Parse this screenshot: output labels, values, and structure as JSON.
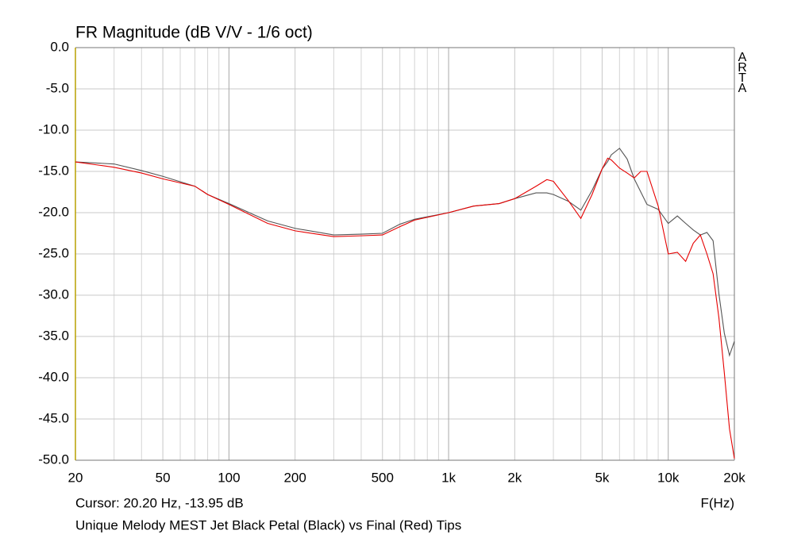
{
  "chart_data": {
    "type": "line",
    "title": "FR Magnitude (dB V/V - 1/6 oct)",
    "watermark": "ARTA",
    "xlabel": "F(Hz)",
    "annotations": [
      "Cursor: 20.20 Hz, -13.95 dB",
      "Unique Melody MEST Jet Black Petal (Black) vs Final (Red) Tips"
    ],
    "xscale": "log",
    "grid": true,
    "xlim": [
      20,
      20000
    ],
    "ylim": [
      -50,
      0
    ],
    "xticks": [
      20,
      50,
      100,
      200,
      500,
      {
        "value": 1000,
        "label": "1k"
      },
      {
        "value": 2000,
        "label": "2k"
      },
      {
        "value": 5000,
        "label": "5k"
      },
      {
        "value": 10000,
        "label": "10k"
      },
      {
        "value": 20000,
        "label": "20k"
      }
    ],
    "xminor_ticks": [
      30,
      40,
      60,
      70,
      80,
      90,
      300,
      400,
      600,
      700,
      800,
      900,
      3000,
      4000,
      6000,
      7000,
      8000,
      9000
    ],
    "yticks": [
      {
        "value": 0,
        "label": "0.0"
      },
      {
        "value": -5,
        "label": "-5.0"
      },
      {
        "value": -10,
        "label": "-10.0"
      },
      {
        "value": -15,
        "label": "-15.0"
      },
      {
        "value": -20,
        "label": "-20.0"
      },
      {
        "value": -25,
        "label": "-25.0"
      },
      {
        "value": -30,
        "label": "-30.0"
      },
      {
        "value": -35,
        "label": "-35.0"
      },
      {
        "value": -40,
        "label": "-40.0"
      },
      {
        "value": -45,
        "label": "-45.0"
      },
      {
        "value": -50,
        "label": "-50.0"
      }
    ],
    "x": [
      20,
      30,
      40,
      50,
      70,
      80,
      100,
      150,
      200,
      300,
      400,
      500,
      600,
      700,
      1000,
      1300,
      1700,
      2000,
      2500,
      2800,
      3000,
      3500,
      4000,
      4500,
      5000,
      5300,
      5500,
      6000,
      6500,
      7000,
      7500,
      8000,
      9000,
      10000,
      11000,
      12000,
      13000,
      14000,
      15000,
      16000,
      17000,
      18000,
      19000,
      20000
    ],
    "series": [
      {
        "color": "#555555",
        "values": [
          -13.85,
          -14.1,
          -14.9,
          -15.6,
          -16.8,
          -17.8,
          -18.9,
          -21.0,
          -21.9,
          -22.7,
          -22.6,
          -22.5,
          -21.4,
          -20.8,
          -20.0,
          -19.2,
          -18.9,
          -18.3,
          -17.6,
          -17.6,
          -17.8,
          -18.6,
          -19.7,
          -17.3,
          -14.7,
          -13.8,
          -13.0,
          -12.2,
          -13.5,
          -15.9,
          -17.5,
          -19.0,
          -19.6,
          -21.3,
          -20.4,
          -21.3,
          -22.1,
          -22.7,
          -22.4,
          -23.4,
          -29.8,
          -34.6,
          -37.3,
          -35.6
        ]
      },
      {
        "color": "#e60000",
        "values": [
          -13.85,
          -14.5,
          -15.2,
          -15.9,
          -16.8,
          -17.8,
          -19.0,
          -21.3,
          -22.2,
          -22.9,
          -22.8,
          -22.7,
          -21.7,
          -20.9,
          -20.0,
          -19.2,
          -18.9,
          -18.3,
          -16.8,
          -16.0,
          -16.2,
          -18.5,
          -20.7,
          -17.8,
          -14.7,
          -13.4,
          -13.6,
          -14.6,
          -15.2,
          -15.8,
          -15.0,
          -15.0,
          -19.2,
          -25.0,
          -24.8,
          -25.9,
          -23.7,
          -22.7,
          -25.0,
          -27.4,
          -32.7,
          -39.4,
          -46.2,
          -49.8
        ]
      }
    ]
  }
}
